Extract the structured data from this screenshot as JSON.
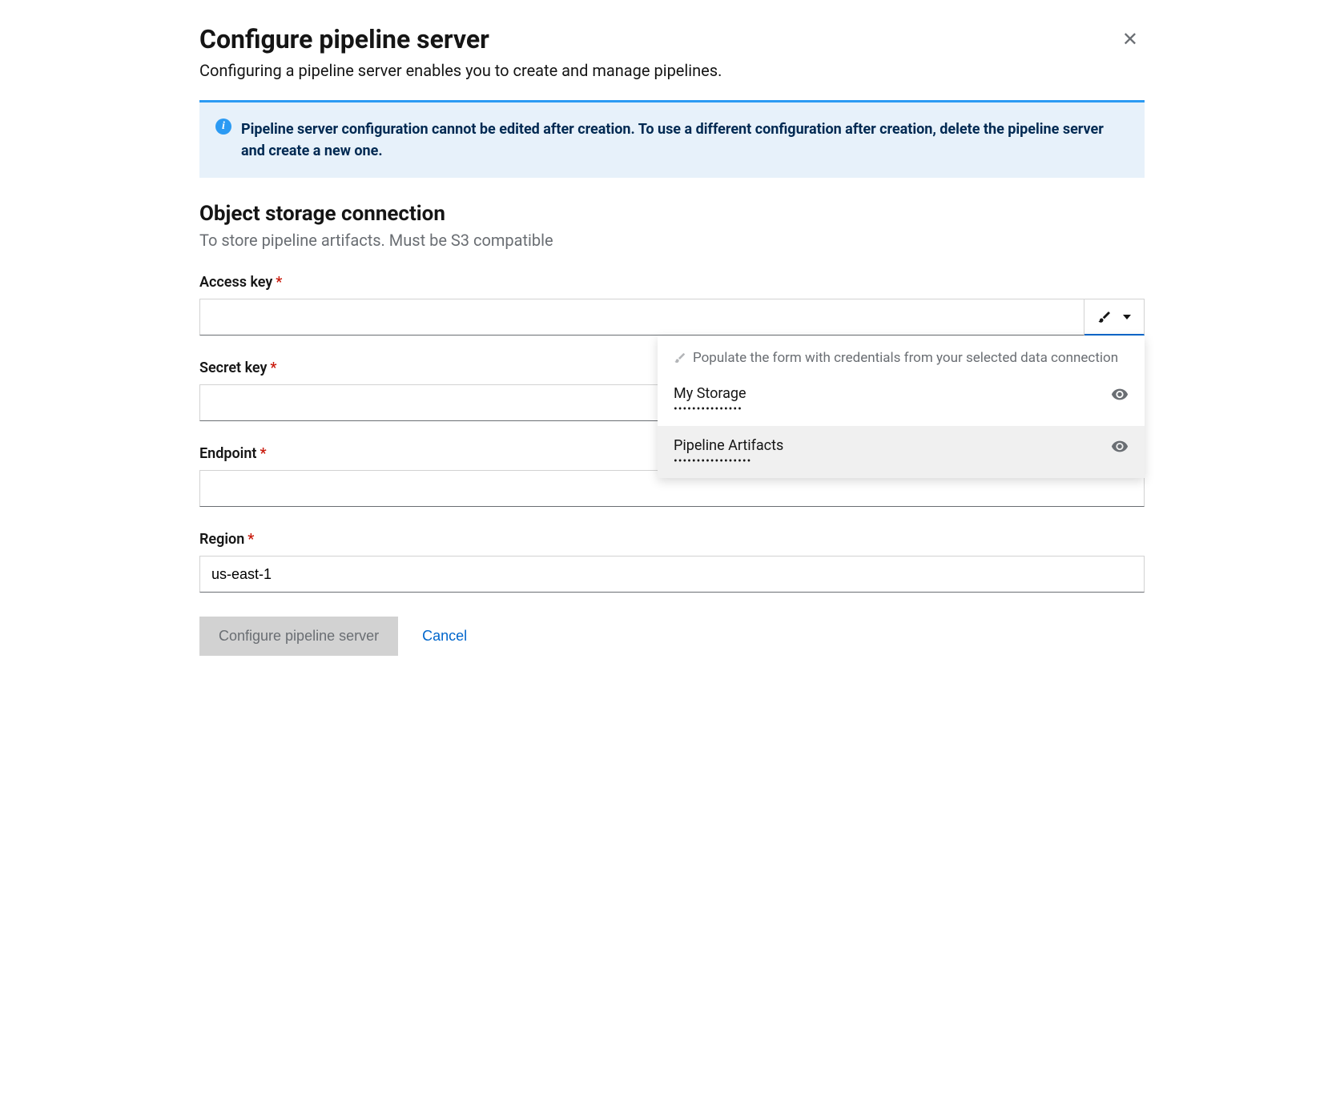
{
  "header": {
    "title": "Configure pipeline server",
    "subtitle": "Configuring a pipeline server enables you to create and manage pipelines."
  },
  "alert": {
    "text": "Pipeline server configuration cannot be edited after creation. To use a different configuration after creation, delete the pipeline server and create a new one."
  },
  "section": {
    "title": "Object storage connection",
    "subtitle": "To store pipeline artifacts. Must be S3 compatible"
  },
  "fields": {
    "access_key": {
      "label": "Access key",
      "value": ""
    },
    "secret_key": {
      "label": "Secret key",
      "value": ""
    },
    "endpoint": {
      "label": "Endpoint",
      "value": ""
    },
    "region": {
      "label": "Region",
      "value": "us-east-1"
    }
  },
  "dropdown": {
    "description": "Populate the form with credentials from your selected data connection",
    "items": [
      {
        "name": "My Storage",
        "masked": "•••••••••••••••",
        "highlighted": false
      },
      {
        "name": "Pipeline Artifacts",
        "masked": "•••••••••••••••••",
        "highlighted": true
      }
    ]
  },
  "buttons": {
    "configure": "Configure pipeline server",
    "cancel": "Cancel"
  },
  "colors": {
    "alert_bg": "#e7f1fa",
    "alert_border": "#2b9af3",
    "primary_blue": "#0066cc",
    "required_red": "#c9190b",
    "text_dark": "#151515",
    "text_muted": "#6a6e73",
    "border": "#d2d2d2",
    "highlight_bg": "#f0f0f0"
  }
}
